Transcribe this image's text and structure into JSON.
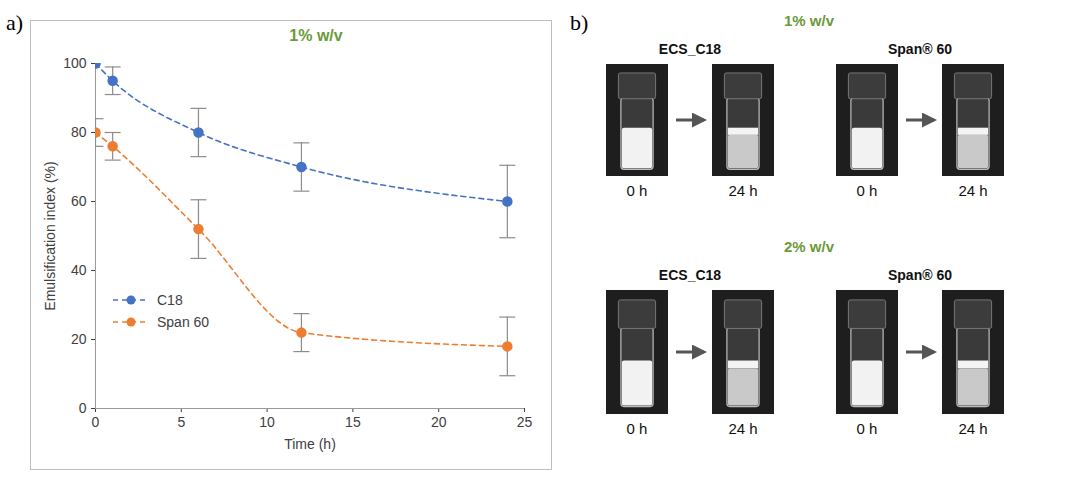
{
  "chart_data": {
    "type": "line",
    "panel_label": "a)",
    "title": "1% w/v",
    "x_label": "Time (h)",
    "y_label": "Emulsification index (%)",
    "x": [
      0,
      1,
      6,
      12,
      24
    ],
    "series": [
      {
        "name": "C18",
        "color": "#4472c4",
        "values": [
          100,
          95,
          80,
          70,
          60
        ],
        "errors": [
          null,
          4,
          7,
          7,
          10.5
        ]
      },
      {
        "name": "Span 60",
        "color": "#ed7d31",
        "values": [
          80,
          76,
          52,
          22,
          18
        ],
        "errors": [
          4,
          4,
          8.5,
          5.5,
          8.5
        ]
      }
    ],
    "xlim": [
      0,
      25
    ],
    "xticks": [
      0,
      5,
      10,
      15,
      20,
      25
    ],
    "ylim": [
      0,
      100
    ],
    "yticks": [
      0,
      20,
      40,
      60,
      80,
      100
    ],
    "grid": false,
    "legend": "lower left",
    "marker": "circle",
    "line_style": "dashed"
  },
  "panel_b": {
    "label": "b)",
    "groups": [
      {
        "title": "1% w/v",
        "samples": [
          {
            "name": "ECS_C18",
            "times": [
              "0 h",
              "24 h"
            ]
          },
          {
            "name": "Span® 60",
            "times": [
              "0 h",
              "24 h"
            ]
          }
        ]
      },
      {
        "title": "2% w/v",
        "samples": [
          {
            "name": "ECS_C18",
            "times": [
              "0 h",
              "24 h"
            ]
          },
          {
            "name": "Span® 60",
            "times": [
              "0 h",
              "24 h"
            ]
          }
        ]
      }
    ]
  }
}
